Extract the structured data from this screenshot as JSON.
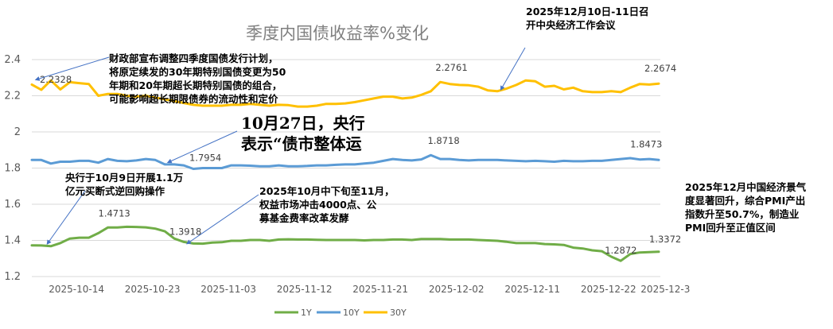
{
  "chart_data": {
    "type": "line",
    "title": "季度内国债收益率%变化",
    "xlabel": "",
    "ylabel": "",
    "ylim": [
      1.2,
      2.4
    ],
    "yticks": [
      "1.2",
      "1.4",
      "1.6",
      "1.8",
      "2",
      "2.2",
      "2.4"
    ],
    "xticks": [
      "2025-10-14",
      "2025-10-23",
      "2025-11-03",
      "2025-11-12",
      "2025-11-21",
      "2025-12-02",
      "2025-12-11",
      "2025-12-22",
      "2025-12-3"
    ],
    "grid": "horizontal",
    "legend": "bottom",
    "series": [
      {
        "name": "1Y",
        "color": "#70ad47",
        "values": [
          1.3725,
          1.372,
          1.368,
          1.385,
          1.41,
          1.415,
          1.415,
          1.44,
          1.4713,
          1.4713,
          1.475,
          1.4745,
          1.472,
          1.465,
          1.45,
          1.41,
          1.3918,
          1.383,
          1.382,
          1.388,
          1.39,
          1.398,
          1.398,
          1.402,
          1.402,
          1.398,
          1.405,
          1.406,
          1.405,
          1.405,
          1.403,
          1.402,
          1.402,
          1.402,
          1.402,
          1.4,
          1.402,
          1.402,
          1.405,
          1.405,
          1.402,
          1.408,
          1.408,
          1.408,
          1.405,
          1.405,
          1.405,
          1.402,
          1.4,
          1.398,
          1.392,
          1.385,
          1.385,
          1.385,
          1.38,
          1.378,
          1.375,
          1.36,
          1.355,
          1.345,
          1.34,
          1.31,
          1.2872,
          1.325,
          1.333,
          1.335,
          1.3372
        ]
      },
      {
        "name": "10Y",
        "color": "#5b9bd5",
        "values": [
          1.845,
          1.845,
          1.825,
          1.835,
          1.835,
          1.84,
          1.84,
          1.83,
          1.85,
          1.84,
          1.838,
          1.842,
          1.85,
          1.845,
          1.82,
          1.82,
          1.815,
          1.7954,
          1.8,
          1.8,
          1.8,
          1.815,
          1.815,
          1.813,
          1.81,
          1.81,
          1.815,
          1.81,
          1.81,
          1.812,
          1.815,
          1.815,
          1.818,
          1.82,
          1.82,
          1.825,
          1.83,
          1.84,
          1.85,
          1.845,
          1.842,
          1.848,
          1.8718,
          1.85,
          1.85,
          1.845,
          1.842,
          1.845,
          1.845,
          1.845,
          1.842,
          1.84,
          1.838,
          1.84,
          1.838,
          1.835,
          1.84,
          1.838,
          1.838,
          1.84,
          1.84,
          1.845,
          1.85,
          1.855,
          1.8473,
          1.85,
          1.845
        ]
      },
      {
        "name": "30Y",
        "color": "#ffc000",
        "values": [
          2.262,
          2.2328,
          2.285,
          2.235,
          2.275,
          2.27,
          2.265,
          2.2,
          2.21,
          2.21,
          2.2,
          2.195,
          2.2,
          2.19,
          2.18,
          2.17,
          2.16,
          2.15,
          2.145,
          2.145,
          2.145,
          2.15,
          2.15,
          2.155,
          2.15,
          2.145,
          2.15,
          2.148,
          2.14,
          2.14,
          2.145,
          2.155,
          2.155,
          2.158,
          2.165,
          2.175,
          2.185,
          2.195,
          2.195,
          2.185,
          2.19,
          2.205,
          2.225,
          2.2761,
          2.265,
          2.26,
          2.258,
          2.25,
          2.23,
          2.225,
          2.24,
          2.26,
          2.285,
          2.28,
          2.25,
          2.255,
          2.235,
          2.245,
          2.225,
          2.22,
          2.22,
          2.225,
          2.22,
          2.245,
          2.265,
          2.262,
          2.2674
        ]
      }
    ],
    "data_labels": [
      {
        "series": 2,
        "index": 1,
        "text": "2.2328"
      },
      {
        "series": 2,
        "index": 43,
        "text": "2.2761"
      },
      {
        "series": 2,
        "index": 66,
        "text": "2.2674"
      },
      {
        "series": 1,
        "index": 17,
        "text": "1.7954"
      },
      {
        "series": 1,
        "index": 42,
        "text": "1.8718"
      },
      {
        "series": 1,
        "index": 64,
        "text": "1.8473"
      },
      {
        "series": 0,
        "index": 8,
        "text": "1.4713"
      },
      {
        "series": 0,
        "index": 16,
        "text": "1.3918"
      },
      {
        "series": 0,
        "index": 62,
        "text": "1.2872"
      },
      {
        "series": 0,
        "index": 66,
        "text": "1.3372"
      }
    ],
    "annotations": [
      {
        "lines": [
          "财政部宣布调整四季度国债发行计划，",
          "将原定续发的30年期特别国债变更为50",
          "年期和20年期超长期特别国债的组合，",
          "可能影响超长期限债券的流动性和定价"
        ]
      },
      {
        "lines": [
          "2025年12月10日-11日召",
          "开中央经济工作会议"
        ]
      },
      {
        "lines": [
          "10月27日，央行",
          "表示“债市整体运"
        ]
      },
      {
        "lines": [
          "央行于10月9日开展1.1万",
          "亿元买断式逆回购操作"
        ]
      },
      {
        "lines": [
          "2025年10月中下旬至11月，",
          "权益市场冲击4000点、公",
          "募基金费率改革发酵"
        ]
      },
      {
        "lines": [
          "2025年12月中国经济景气",
          "度显著回升，综合PMI产出",
          "指数升至50.7%，制造业",
          "PMI回升至正值区间"
        ]
      }
    ]
  }
}
